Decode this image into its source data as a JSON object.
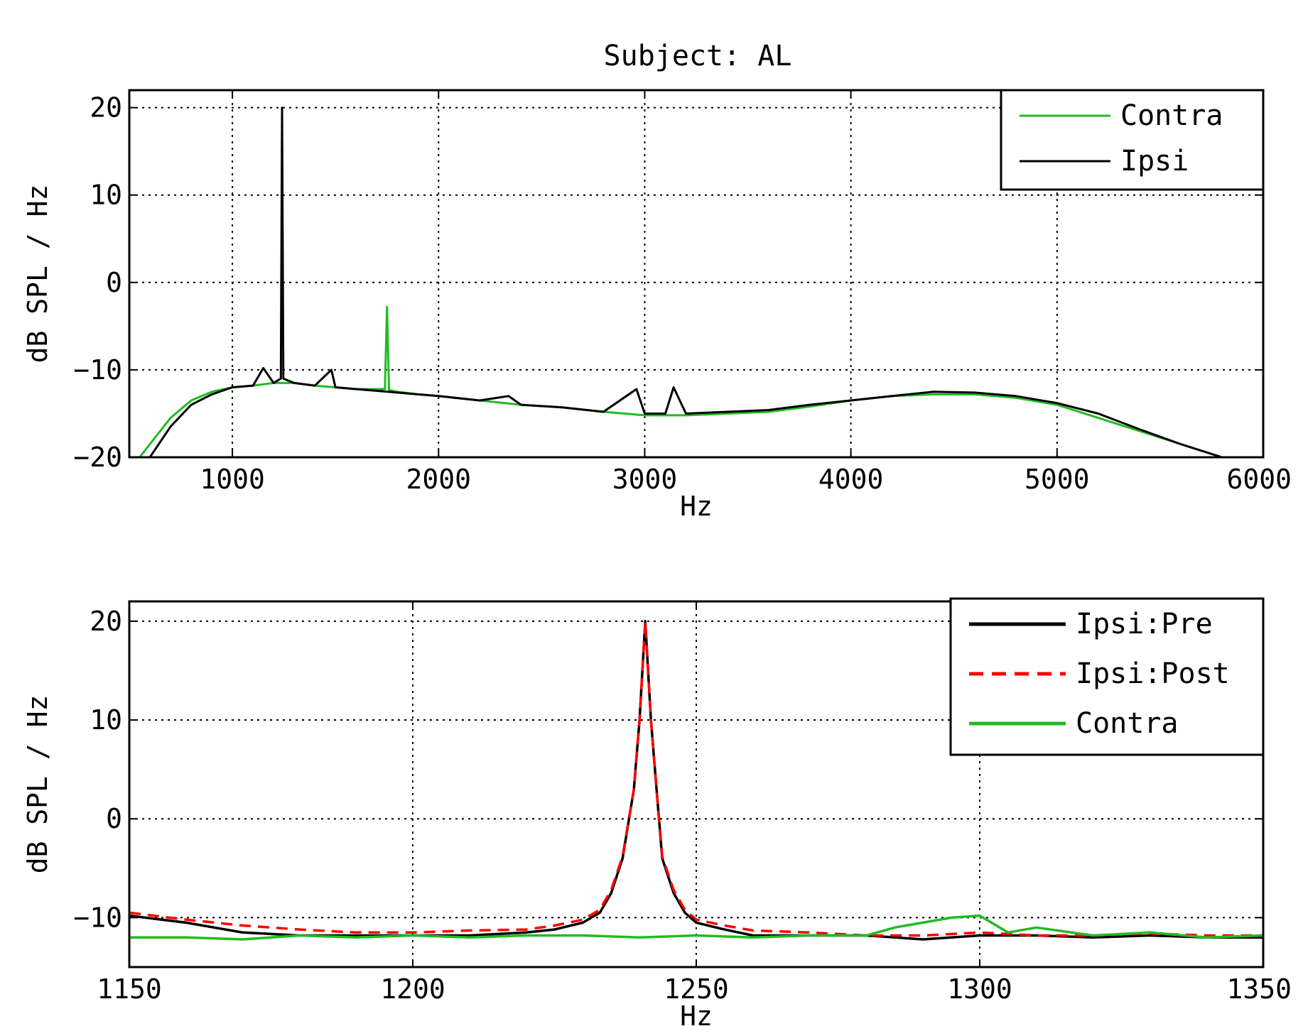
{
  "figure": {
    "title": "Subject: AL"
  },
  "colors": {
    "black": "#000000",
    "green": "#22bb22",
    "red": "#ff0000",
    "grid": "#000000"
  },
  "chart_data": [
    {
      "type": "line",
      "xlabel": "Hz",
      "ylabel": "dB SPL / Hz",
      "xlim": [
        500,
        6000
      ],
      "ylim": [
        -20,
        22
      ],
      "xticks": [
        1000,
        2000,
        3000,
        4000,
        5000,
        6000
      ],
      "yticks": [
        -20,
        -10,
        0,
        10,
        20
      ],
      "grid": true,
      "legend_position": "top-right",
      "series": [
        {
          "name": "Contra",
          "color": "#22bb22",
          "dash": "solid",
          "x": [
            550,
            600,
            700,
            800,
            900,
            1000,
            1100,
            1200,
            1300,
            1400,
            1500,
            1600,
            1700,
            1740,
            1750,
            1760,
            1800,
            1900,
            2000,
            2200,
            2400,
            2600,
            2800,
            3000,
            3200,
            3400,
            3600,
            3800,
            4000,
            4200,
            4400,
            4600,
            4800,
            5000,
            5200,
            5400,
            5600,
            5800
          ],
          "y": [
            -20,
            -18.5,
            -15.5,
            -13.5,
            -12.5,
            -12,
            -11.8,
            -11.5,
            -11.5,
            -11.8,
            -12,
            -12.2,
            -12.2,
            -12.2,
            -2.8,
            -12.3,
            -12.5,
            -12.8,
            -13,
            -13.5,
            -14,
            -14.3,
            -14.8,
            -15.2,
            -15.2,
            -15,
            -14.8,
            -14.2,
            -13.5,
            -13,
            -12.8,
            -12.8,
            -13.2,
            -14,
            -15.5,
            -17,
            -18.5,
            -20
          ]
        },
        {
          "name": "Ipsi",
          "color": "#000000",
          "dash": "solid",
          "x": [
            600,
            700,
            800,
            900,
            1000,
            1100,
            1150,
            1200,
            1235,
            1241,
            1247,
            1300,
            1400,
            1480,
            1500,
            1600,
            1700,
            1800,
            1900,
            2000,
            2200,
            2340,
            2400,
            2600,
            2800,
            2960,
            3000,
            3100,
            3140,
            3200,
            3400,
            3600,
            3800,
            4000,
            4200,
            4400,
            4600,
            4800,
            5000,
            5200,
            5400,
            5600,
            5800
          ],
          "y": [
            -20,
            -16.5,
            -14,
            -12.8,
            -12,
            -11.8,
            -9.8,
            -11.5,
            -11,
            20,
            -11,
            -11.5,
            -11.8,
            -10,
            -12,
            -12.2,
            -12.4,
            -12.6,
            -12.8,
            -13,
            -13.5,
            -13,
            -14,
            -14.3,
            -14.8,
            -12.2,
            -15,
            -15,
            -12,
            -15,
            -14.8,
            -14.6,
            -14,
            -13.5,
            -13,
            -12.5,
            -12.6,
            -13,
            -13.8,
            -15,
            -16.8,
            -18.5,
            -20
          ]
        }
      ]
    },
    {
      "type": "line",
      "xlabel": "Hz",
      "ylabel": "dB SPL / Hz",
      "xlim": [
        1150,
        1350
      ],
      "ylim": [
        -15,
        22
      ],
      "xticks": [
        1150,
        1200,
        1250,
        1300,
        1350
      ],
      "yticks": [
        -10,
        0,
        10,
        20
      ],
      "grid": true,
      "legend_position": "top-right",
      "series": [
        {
          "name": "Ipsi:Pre",
          "color": "#000000",
          "dash": "solid",
          "x": [
            1150,
            1160,
            1170,
            1180,
            1190,
            1200,
            1210,
            1220,
            1225,
            1230,
            1233,
            1235,
            1237,
            1239,
            1240,
            1241,
            1242,
            1243,
            1244,
            1246,
            1248,
            1250,
            1255,
            1260,
            1270,
            1280,
            1290,
            1300,
            1310,
            1320,
            1330,
            1340,
            1350
          ],
          "y": [
            -9.8,
            -10.5,
            -11.5,
            -11.8,
            -11.8,
            -11.8,
            -11.8,
            -11.5,
            -11.2,
            -10.5,
            -9.5,
            -7.5,
            -4,
            3,
            10,
            20,
            10,
            3,
            -4,
            -7.5,
            -9.5,
            -10.5,
            -11.2,
            -11.8,
            -11.8,
            -11.8,
            -12.2,
            -11.8,
            -11.8,
            -12,
            -11.8,
            -12,
            -12
          ]
        },
        {
          "name": "Ipsi:Post",
          "color": "#ff0000",
          "dash": "dashed",
          "x": [
            1150,
            1160,
            1170,
            1180,
            1190,
            1200,
            1210,
            1220,
            1225,
            1230,
            1233,
            1235,
            1237,
            1239,
            1240,
            1241,
            1242,
            1243,
            1244,
            1246,
            1248,
            1250,
            1255,
            1260,
            1270,
            1280,
            1290,
            1300,
            1310,
            1320,
            1330,
            1340,
            1350
          ],
          "y": [
            -9.5,
            -10.2,
            -10.8,
            -11.2,
            -11.5,
            -11.5,
            -11.3,
            -11.2,
            -10.8,
            -10.2,
            -9.2,
            -7.2,
            -3.8,
            3,
            10,
            20,
            10,
            3,
            -3.8,
            -7.2,
            -9.2,
            -10.2,
            -10.8,
            -11.3,
            -11.5,
            -11.8,
            -11.8,
            -11.5,
            -11.8,
            -11.8,
            -11.6,
            -11.8,
            -11.8
          ]
        },
        {
          "name": "Contra",
          "color": "#22bb22",
          "dash": "solid",
          "x": [
            1150,
            1160,
            1170,
            1180,
            1190,
            1200,
            1210,
            1220,
            1230,
            1240,
            1250,
            1260,
            1270,
            1280,
            1285,
            1290,
            1295,
            1300,
            1305,
            1310,
            1320,
            1330,
            1340,
            1350
          ],
          "y": [
            -12,
            -12,
            -12.2,
            -11.8,
            -12,
            -11.8,
            -12,
            -11.8,
            -11.8,
            -12,
            -11.8,
            -12,
            -11.8,
            -11.8,
            -11,
            -10.5,
            -10,
            -9.8,
            -11.5,
            -11,
            -11.8,
            -11.5,
            -12,
            -11.8
          ]
        }
      ]
    }
  ]
}
